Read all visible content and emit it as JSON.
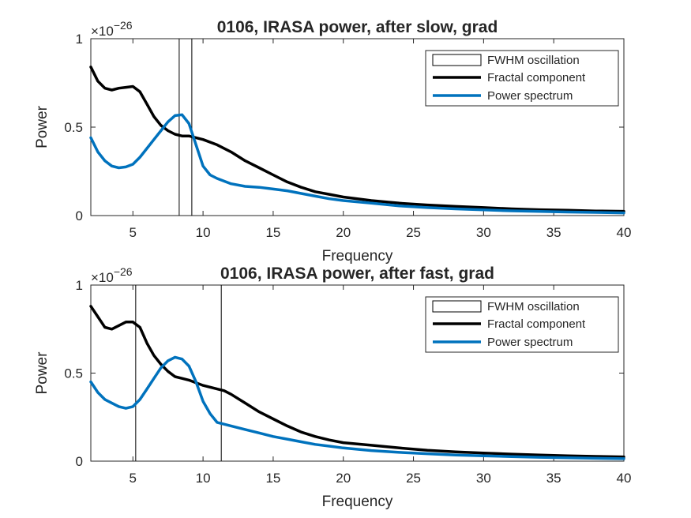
{
  "colors": {
    "fractal": "#000000",
    "power": "#0072BD",
    "axis": "#262626"
  },
  "chart_data": [
    {
      "type": "line",
      "title": "0106, IRASA power, after slow, grad",
      "xlabel": "Frequency",
      "ylabel": "Power",
      "exponent_label": "×10−26",
      "exponent_base": "×10",
      "exponent_power": "−26",
      "xlim": [
        2,
        40
      ],
      "ylim": [
        0,
        1
      ],
      "xticks": [
        5,
        10,
        15,
        20,
        25,
        30,
        35,
        40
      ],
      "yticks": [
        0,
        0.5,
        1
      ],
      "xtick_labels": [
        "5",
        "10",
        "15",
        "20",
        "25",
        "30",
        "35",
        "40"
      ],
      "ytick_labels": [
        "0",
        "0.5",
        "1"
      ],
      "grid": false,
      "legend_position": "top-right",
      "legend": [
        "FWHM oscillation",
        "Fractal component",
        "Power spectrum"
      ],
      "fwhm": {
        "start": 8.3,
        "end": 9.2
      },
      "series": [
        {
          "name": "Fractal component",
          "color": "#000000",
          "x": [
            2,
            2.5,
            3,
            3.5,
            4,
            4.5,
            5,
            5.5,
            6,
            6.5,
            7,
            7.5,
            8,
            8.5,
            9,
            10,
            11,
            12,
            13,
            14,
            15,
            16,
            17,
            18,
            19,
            20,
            22,
            24,
            26,
            28,
            30,
            32,
            34,
            36,
            38,
            40
          ],
          "y": [
            0.84,
            0.76,
            0.72,
            0.71,
            0.72,
            0.725,
            0.73,
            0.7,
            0.63,
            0.56,
            0.51,
            0.48,
            0.46,
            0.45,
            0.45,
            0.43,
            0.4,
            0.36,
            0.31,
            0.27,
            0.23,
            0.19,
            0.16,
            0.135,
            0.12,
            0.105,
            0.085,
            0.07,
            0.06,
            0.052,
            0.045,
            0.038,
            0.033,
            0.03,
            0.026,
            0.024
          ]
        },
        {
          "name": "Power spectrum",
          "color": "#0072BD",
          "x": [
            2,
            2.5,
            3,
            3.5,
            4,
            4.5,
            5,
            5.5,
            6,
            6.5,
            7,
            7.5,
            8,
            8.5,
            9,
            9.5,
            10,
            10.5,
            11,
            12,
            13,
            14,
            15,
            16,
            17,
            18,
            19,
            20,
            22,
            24,
            26,
            28,
            30,
            32,
            34,
            36,
            38,
            40
          ],
          "y": [
            0.44,
            0.36,
            0.31,
            0.28,
            0.27,
            0.275,
            0.29,
            0.33,
            0.38,
            0.43,
            0.48,
            0.53,
            0.565,
            0.57,
            0.52,
            0.4,
            0.28,
            0.23,
            0.21,
            0.18,
            0.165,
            0.16,
            0.15,
            0.14,
            0.125,
            0.11,
            0.095,
            0.085,
            0.07,
            0.055,
            0.045,
            0.038,
            0.032,
            0.027,
            0.023,
            0.02,
            0.018,
            0.015
          ]
        }
      ]
    },
    {
      "type": "line",
      "title": "0106, IRASA power, after fast, grad",
      "xlabel": "Frequency",
      "ylabel": "Power",
      "exponent_label": "×10−26",
      "exponent_base": "×10",
      "exponent_power": "−26",
      "xlim": [
        2,
        40
      ],
      "ylim": [
        0,
        1
      ],
      "xticks": [
        5,
        10,
        15,
        20,
        25,
        30,
        35,
        40
      ],
      "yticks": [
        0,
        0.5,
        1
      ],
      "xtick_labels": [
        "5",
        "10",
        "15",
        "20",
        "25",
        "30",
        "35",
        "40"
      ],
      "ytick_labels": [
        "0",
        "0.5",
        "1"
      ],
      "grid": false,
      "legend_position": "top-right",
      "legend": [
        "FWHM oscillation",
        "Fractal component",
        "Power spectrum"
      ],
      "fwhm": {
        "start": 5.2,
        "end": 11.3
      },
      "series": [
        {
          "name": "Fractal component",
          "color": "#000000",
          "x": [
            2,
            2.5,
            3,
            3.5,
            4,
            4.5,
            5,
            5.5,
            6,
            6.5,
            7,
            7.5,
            8,
            8.5,
            9,
            10,
            11,
            11.5,
            12,
            13,
            14,
            15,
            16,
            17,
            18,
            19,
            20,
            22,
            24,
            26,
            28,
            30,
            32,
            34,
            36,
            38,
            40
          ],
          "y": [
            0.88,
            0.82,
            0.76,
            0.75,
            0.77,
            0.79,
            0.79,
            0.76,
            0.67,
            0.6,
            0.55,
            0.51,
            0.48,
            0.47,
            0.46,
            0.43,
            0.41,
            0.4,
            0.38,
            0.33,
            0.28,
            0.24,
            0.2,
            0.165,
            0.14,
            0.12,
            0.105,
            0.09,
            0.075,
            0.062,
            0.053,
            0.046,
            0.04,
            0.035,
            0.03,
            0.027,
            0.024
          ]
        },
        {
          "name": "Power spectrum",
          "color": "#0072BD",
          "x": [
            2,
            2.5,
            3,
            3.5,
            4,
            4.5,
            5,
            5.5,
            6,
            6.5,
            7,
            7.5,
            8,
            8.5,
            9,
            9.5,
            10,
            10.5,
            11,
            12,
            13,
            14,
            15,
            16,
            17,
            18,
            19,
            20,
            22,
            24,
            26,
            28,
            30,
            32,
            34,
            36,
            38,
            40
          ],
          "y": [
            0.45,
            0.39,
            0.35,
            0.33,
            0.31,
            0.3,
            0.31,
            0.35,
            0.41,
            0.47,
            0.53,
            0.57,
            0.59,
            0.58,
            0.54,
            0.45,
            0.34,
            0.27,
            0.22,
            0.2,
            0.18,
            0.16,
            0.14,
            0.125,
            0.11,
            0.095,
            0.085,
            0.075,
            0.06,
            0.05,
            0.042,
            0.035,
            0.03,
            0.026,
            0.022,
            0.019,
            0.016,
            0.014
          ]
        }
      ]
    }
  ]
}
